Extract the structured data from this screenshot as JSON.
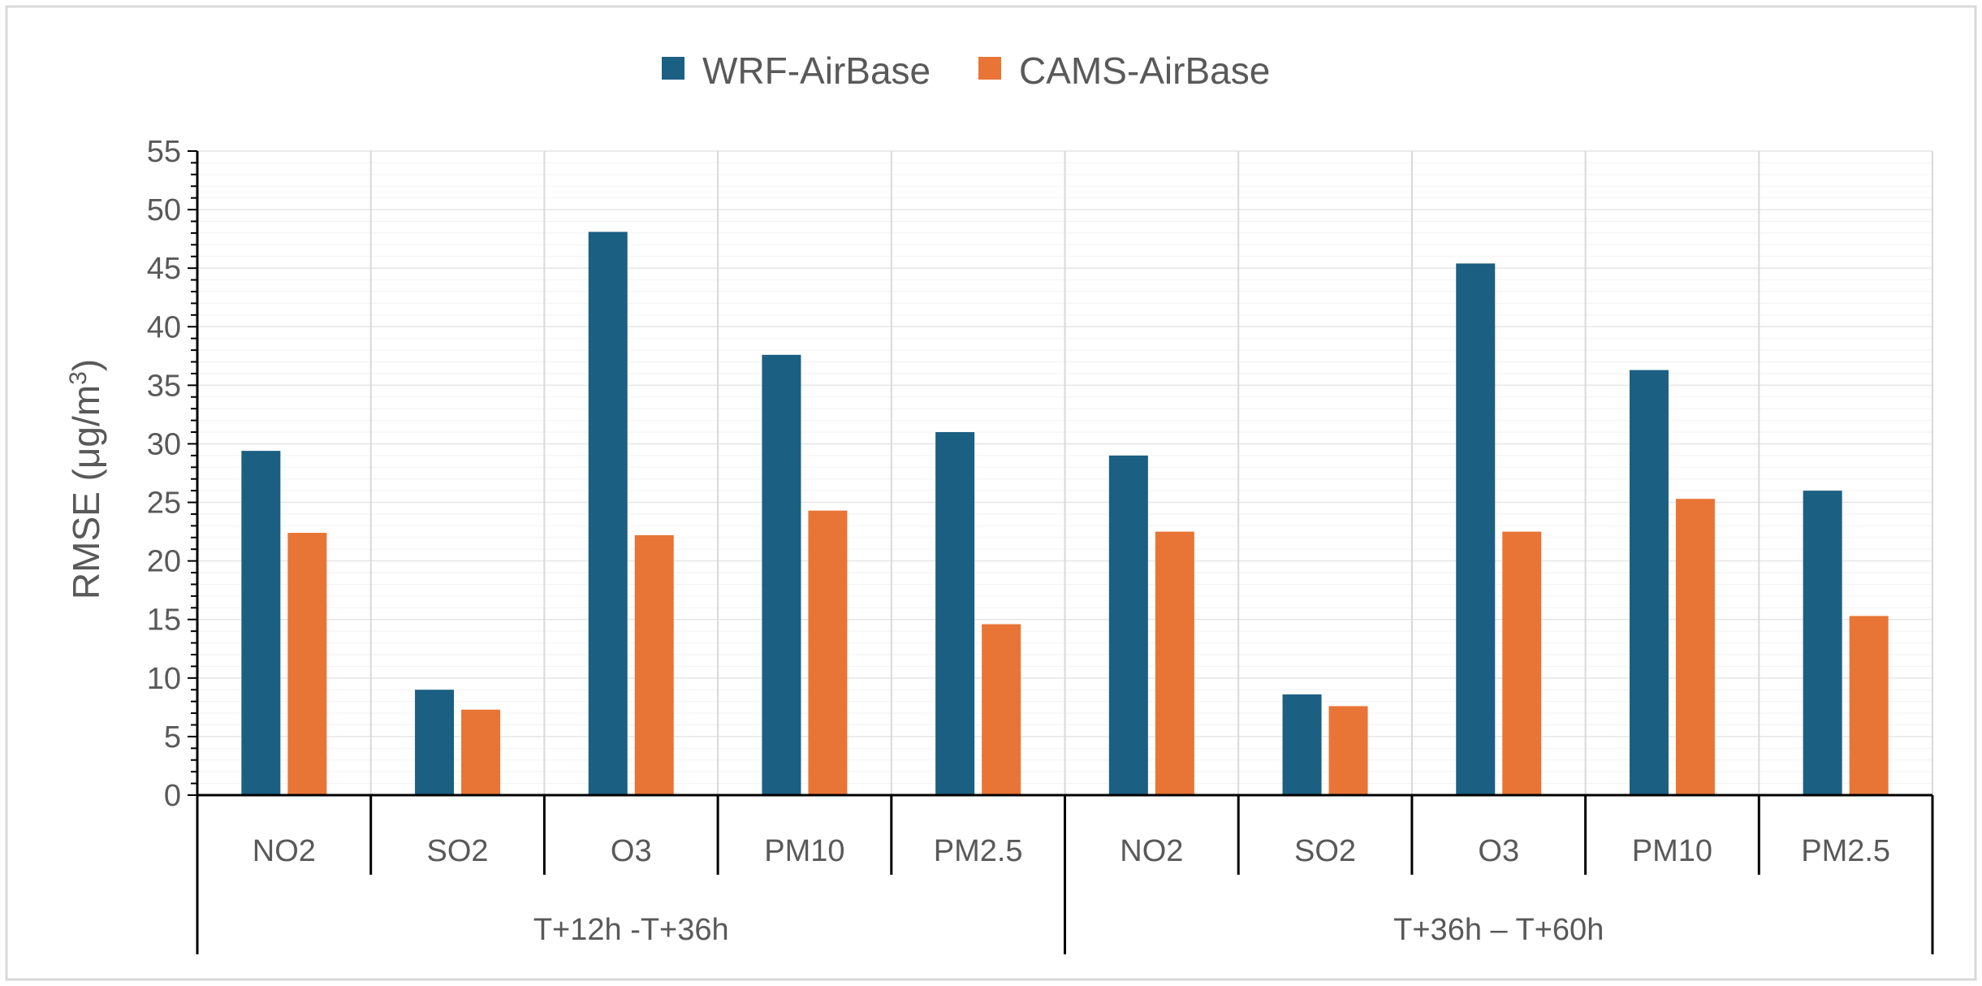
{
  "chart_data": {
    "type": "bar",
    "title": "",
    "ylabel": "RMSE (μg/m3)",
    "ylabel_main": "RMSE (μg/m",
    "ylabel_sup": "3",
    "ylabel_close": ")",
    "ylim": [
      0,
      55
    ],
    "ytick_step": 5,
    "yticks": [
      "0",
      "5",
      "10",
      "15",
      "20",
      "25",
      "30",
      "35",
      "40",
      "45",
      "50",
      "55"
    ],
    "groups": [
      {
        "label": "T+12h -T+36h",
        "categories": [
          "NO2",
          "SO2",
          "O3",
          "PM10",
          "PM2.5"
        ]
      },
      {
        "label": "T+36h – T+60h",
        "categories": [
          "NO2",
          "SO2",
          "O3",
          "PM10",
          "PM2.5"
        ]
      }
    ],
    "series": [
      {
        "name": "WRF-AirBase",
        "color": "#1b5f83",
        "values": [
          29.4,
          9.0,
          48.1,
          37.6,
          31.0,
          29.0,
          8.6,
          45.4,
          36.3,
          26.0
        ]
      },
      {
        "name": "CAMS-AirBase",
        "color": "#e87535",
        "values": [
          22.4,
          7.3,
          22.2,
          24.3,
          14.6,
          22.5,
          7.6,
          22.5,
          25.3,
          15.3
        ]
      }
    ],
    "grid": true,
    "legend": "top"
  }
}
